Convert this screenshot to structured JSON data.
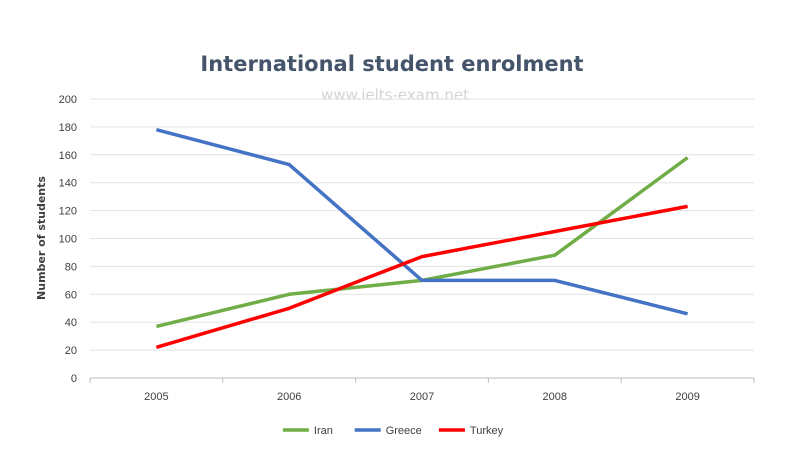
{
  "chart_data": {
    "type": "line",
    "title": "International student enrolment",
    "watermark": "www.ielts-exam.net",
    "xlabel": "",
    "ylabel": "Number of students",
    "categories": [
      "2005",
      "2006",
      "2007",
      "2008",
      "2009"
    ],
    "ylim": [
      0,
      200
    ],
    "yticks": [
      "0",
      "20",
      "40",
      "60",
      "80",
      "100",
      "120",
      "140",
      "160",
      "180",
      "200"
    ],
    "grid": true,
    "legend_position": "bottom",
    "series": [
      {
        "name": "Iran",
        "color": "#70ad47",
        "values": [
          37,
          60,
          70,
          88,
          158
        ]
      },
      {
        "name": "Greece",
        "color": "#4472c4",
        "values": [
          178,
          153,
          70,
          70,
          46
        ]
      },
      {
        "name": "Turkey",
        "color": "#ff0000",
        "values": [
          22,
          50,
          87,
          105,
          123
        ]
      }
    ]
  }
}
